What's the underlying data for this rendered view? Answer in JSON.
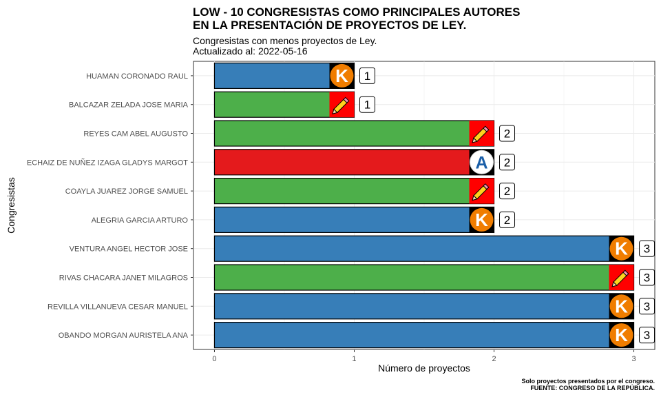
{
  "chart_data": {
    "type": "bar",
    "orientation": "horizontal",
    "title_line1": "LOW - 10 CONGRESISTAS COMO PRINCIPALES AUTORES",
    "title_line2": "EN LA PRESENTACIÓN DE PROYECTOS DE LEY.",
    "subtitle_line1": "Congresistas con menos proyectos de Ley.",
    "subtitle_line2": "Actualizado al: 2022-05-16",
    "xlabel": "Número de proyectos",
    "ylabel": "Congresistas",
    "caption_line1": "Solo proyectos presentados por el congreso.",
    "caption_line2": "FUENTE: CONGRESO DE LA REPÚBLICA.",
    "xlim": [
      -0.15,
      3.15
    ],
    "xticks": [
      "0",
      "1",
      "2",
      "3"
    ],
    "grid": true,
    "categories": [
      "HUAMAN CORONADO RAUL",
      "BALCAZAR ZELADA JOSE MARIA",
      "REYES CAM ABEL AUGUSTO",
      "ECHAIZ DE NUÑEZ IZAGA GLADYS MARGOT",
      "COAYLA JUAREZ JORGE SAMUEL",
      "ALEGRIA GARCIA ARTURO",
      "VENTURA ANGEL HECTOR JOSE",
      "RIVAS CHACARA JANET MILAGROS",
      "REVILLA VILLANUEVA CESAR MANUEL",
      "OBANDO MORGAN AURISTELA ANA"
    ],
    "values": [
      1,
      1,
      2,
      2,
      2,
      2,
      3,
      3,
      3,
      3
    ],
    "value_labels": [
      "1",
      "1",
      "2",
      "2",
      "2",
      "2",
      "3",
      "3",
      "3",
      "3"
    ],
    "bar_colors": [
      "#377eb8",
      "#4daf4a",
      "#4daf4a",
      "#e41a1c",
      "#4daf4a",
      "#377eb8",
      "#377eb8",
      "#4daf4a",
      "#377eb8",
      "#377eb8"
    ],
    "party_logos": [
      "k-logo-icon",
      "pencil-logo-icon",
      "pencil-logo-icon",
      "a-logo-icon",
      "pencil-logo-icon",
      "k-logo-icon",
      "k-logo-icon",
      "pencil-logo-icon",
      "k-logo-icon",
      "k-logo-icon"
    ],
    "logo_letters": {
      "k": "K",
      "a": "A"
    }
  }
}
